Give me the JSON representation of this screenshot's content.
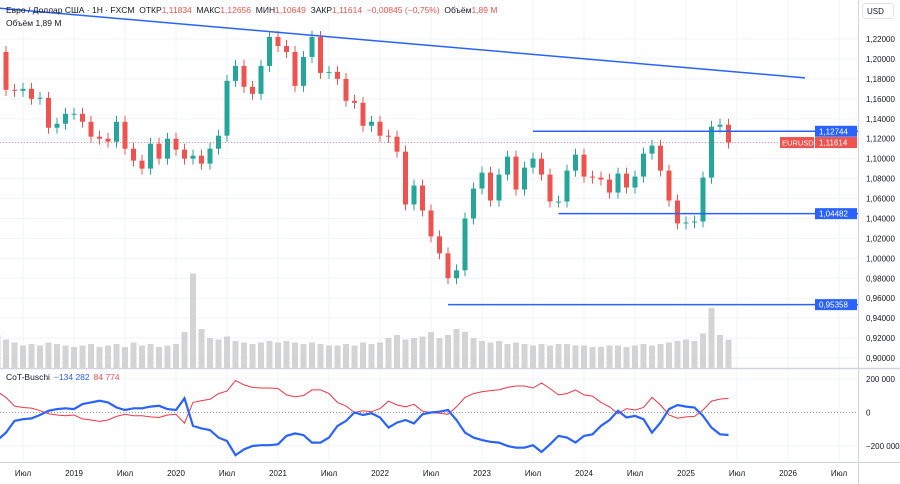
{
  "legend": {
    "symbol": "Евро / Доллар США · 1Н · FXCM",
    "open_label": "ОТКР",
    "open": "1,11834",
    "high_label": "МАКС",
    "high": "1,12656",
    "low_label": "МИН",
    "low": "1,10649",
    "close_label": "ЗАКР",
    "close": "1,11614",
    "change": "−0,00845 (−0,75%)",
    "volume_label": "Объём",
    "volume": "1,89 M",
    "volume_row": "Объём  1,89 M"
  },
  "currency": "USD",
  "cot_legend": {
    "name": "CoT-Buschi",
    "blue_value": "−134 282",
    "red_value": "84 774"
  },
  "colors": {
    "up": "#26a69a",
    "down": "#ef5350",
    "line": "#2962ff",
    "volume": "#c9c9c9",
    "cot_blue": "#2962ff",
    "cot_red": "#f23645",
    "grid": "#f0f3fa"
  },
  "chart_data": {
    "type": "candlestick",
    "symbol": "EURUSD",
    "months": [
      "2018-04",
      "2018-05",
      "2018-06",
      "2018-07",
      "2018-08",
      "2018-09",
      "2018-10",
      "2018-11",
      "2018-12",
      "2019-01",
      "2019-02",
      "2019-03",
      "2019-04",
      "2019-05",
      "2019-06",
      "2019-07",
      "2019-08",
      "2019-09",
      "2019-10",
      "2019-11",
      "2019-12",
      "2020-01",
      "2020-02",
      "2020-03",
      "2020-04",
      "2020-05",
      "2020-06",
      "2020-07",
      "2020-08",
      "2020-09",
      "2020-10",
      "2020-11",
      "2020-12",
      "2021-01",
      "2021-02",
      "2021-03",
      "2021-04",
      "2021-05",
      "2021-06",
      "2021-07",
      "2021-08",
      "2021-09",
      "2021-10",
      "2021-11",
      "2021-12",
      "2022-01",
      "2022-02",
      "2022-03",
      "2022-04",
      "2022-05",
      "2022-06",
      "2022-07",
      "2022-08",
      "2022-09",
      "2022-10",
      "2022-11",
      "2022-12",
      "2023-01",
      "2023-02",
      "2023-03",
      "2023-04",
      "2023-05",
      "2023-06",
      "2023-07",
      "2023-08",
      "2023-09",
      "2023-10",
      "2023-11",
      "2023-12",
      "2024-01",
      "2024-02",
      "2024-03",
      "2024-04",
      "2024-05",
      "2024-06",
      "2024-07",
      "2024-08",
      "2024-09",
      "2024-10",
      "2024-11",
      "2024-12",
      "2025-01",
      "2025-02",
      "2025-03",
      "2025-04",
      "2025-05",
      "2025-06"
    ],
    "open_first": 1.232,
    "close": [
      1.207,
      1.169,
      1.168,
      1.17,
      1.16,
      1.161,
      1.131,
      1.135,
      1.145,
      1.145,
      1.137,
      1.122,
      1.12,
      1.117,
      1.137,
      1.11,
      1.098,
      1.09,
      1.115,
      1.1,
      1.12,
      1.109,
      1.1,
      1.103,
      1.095,
      1.11,
      1.123,
      1.178,
      1.193,
      1.172,
      1.165,
      1.193,
      1.222,
      1.213,
      1.207,
      1.173,
      1.202,
      1.222,
      1.186,
      1.187,
      1.18,
      1.158,
      1.156,
      1.133,
      1.137,
      1.123,
      1.122,
      1.107,
      1.054,
      1.073,
      1.048,
      1.022,
      1.005,
      0.98,
      0.988,
      1.04,
      1.07,
      1.086,
      1.058,
      1.084,
      1.102,
      1.069,
      1.091,
      1.1,
      1.084,
      1.057,
      1.057,
      1.088,
      1.104,
      1.082,
      1.081,
      1.079,
      1.066,
      1.085,
      1.071,
      1.082,
      1.105,
      1.113,
      1.088,
      1.058,
      1.035,
      1.036,
      1.037,
      1.081,
      1.132,
      1.134,
      1.11614
    ],
    "volume_m": [
      2.2,
      1.9,
      1.7,
      1.5,
      1.6,
      1.5,
      1.7,
      1.6,
      1.5,
      1.4,
      1.5,
      1.6,
      1.4,
      1.5,
      1.6,
      1.4,
      1.7,
      1.5,
      1.6,
      1.4,
      1.5,
      1.6,
      2.4,
      6.3,
      2.6,
      2.0,
      1.9,
      2.1,
      1.8,
      1.7,
      1.6,
      1.7,
      1.8,
      1.7,
      1.8,
      1.7,
      1.6,
      1.7,
      1.6,
      1.5,
      1.5,
      1.6,
      1.5,
      1.7,
      1.6,
      1.7,
      2.0,
      2.2,
      1.9,
      2.0,
      2.1,
      2.4,
      2.0,
      2.2,
      2.6,
      2.4,
      2.0,
      1.8,
      1.7,
      1.8,
      1.6,
      1.7,
      1.6,
      1.5,
      1.6,
      1.5,
      1.6,
      1.6,
      1.5,
      1.5,
      1.4,
      1.4,
      1.5,
      1.5,
      1.4,
      1.5,
      1.6,
      1.5,
      1.6,
      1.7,
      1.8,
      1.9,
      1.8,
      2.3,
      4.0,
      2.2,
      1.89
    ],
    "y_ticks": [
      "1,22000",
      "1,20000",
      "1,18000",
      "1,16000",
      "1,14000",
      "1,12000",
      "1,10000",
      "1,08000",
      "1,06000",
      "1,04000",
      "1,02000",
      "1,00000",
      "0,98000",
      "0,96000",
      "0,94000",
      "0,92000",
      "0,90000"
    ],
    "y_range": [
      0.9,
      1.22
    ],
    "levels": [
      {
        "price": 1.12744,
        "label": "1,12744",
        "from": "2023-07"
      },
      {
        "price": 1.04482,
        "label": "1,04482",
        "from": "2023-10"
      },
      {
        "price": 0.95358,
        "label": "0,95358",
        "from": "2022-09"
      }
    ],
    "current_price": {
      "price": 1.11614,
      "label": "1,11614",
      "tag": "EURUSD"
    },
    "trendline": {
      "from": {
        "month": "2018-04",
        "price": 1.251
      },
      "to": {
        "month": "2026-03",
        "price": 1.181
      }
    },
    "x_ticks": [
      {
        "month": "2018-07",
        "label": "Июл"
      },
      {
        "month": "2019-01",
        "label": "2019"
      },
      {
        "month": "2019-07",
        "label": "Июл"
      },
      {
        "month": "2020-01",
        "label": "2020"
      },
      {
        "month": "2020-07",
        "label": "Июл"
      },
      {
        "month": "2021-01",
        "label": "2021"
      },
      {
        "month": "2021-07",
        "label": "Июл"
      },
      {
        "month": "2022-01",
        "label": "2022"
      },
      {
        "month": "2022-07",
        "label": "Июл"
      },
      {
        "month": "2023-01",
        "label": "2023"
      },
      {
        "month": "2023-07",
        "label": "Июл"
      },
      {
        "month": "2024-01",
        "label": "2024"
      },
      {
        "month": "2024-07",
        "label": "Июл"
      },
      {
        "month": "2025-01",
        "label": "2025"
      },
      {
        "month": "2025-07",
        "label": "Июл"
      },
      {
        "month": "2026-01",
        "label": "2026"
      },
      {
        "month": "2026-07",
        "label": "Июл"
      }
    ],
    "cot": {
      "y_ticks": [
        {
          "value": 200000,
          "label": "200 000"
        },
        {
          "value": 0,
          "label": "0"
        },
        {
          "value": -200000,
          "label": "−200 000"
        }
      ],
      "blue": [
        -165000,
        -120000,
        -50000,
        -40000,
        -35000,
        -15000,
        10000,
        20000,
        25000,
        20000,
        50000,
        60000,
        70000,
        60000,
        30000,
        15000,
        25000,
        25000,
        35000,
        40000,
        20000,
        15000,
        85000,
        -80000,
        -95000,
        -105000,
        -150000,
        -170000,
        -255000,
        -220000,
        -200000,
        -195000,
        -195000,
        -190000,
        -140000,
        -125000,
        -135000,
        -180000,
        -180000,
        -150000,
        -80000,
        -50000,
        0,
        -15000,
        -5000,
        -30000,
        -90000,
        -60000,
        -45000,
        -65000,
        -10000,
        0,
        5000,
        15000,
        -45000,
        -120000,
        -150000,
        -165000,
        -175000,
        -180000,
        -200000,
        -210000,
        -210000,
        -195000,
        -235000,
        -190000,
        -140000,
        -150000,
        -180000,
        -140000,
        -130000,
        -80000,
        -45000,
        10000,
        -30000,
        -20000,
        -40000,
        -120000,
        -60000,
        20000,
        45000,
        35000,
        30000,
        -20000,
        -90000,
        -130000,
        -134282
      ],
      "red": [
        124000,
        90000,
        38000,
        30000,
        26000,
        11000,
        -8000,
        -15000,
        -19000,
        -15000,
        -38000,
        -45000,
        -53000,
        -45000,
        -23000,
        -11000,
        -19000,
        -19000,
        -26000,
        -30000,
        -15000,
        -11000,
        -64000,
        60000,
        71000,
        79000,
        113000,
        128000,
        191000,
        165000,
        150000,
        146000,
        146000,
        143000,
        105000,
        94000,
        101000,
        135000,
        135000,
        113000,
        60000,
        38000,
        0,
        11000,
        4000,
        23000,
        68000,
        45000,
        34000,
        49000,
        8000,
        0,
        -4000,
        -11000,
        34000,
        90000,
        113000,
        124000,
        131000,
        135000,
        150000,
        158000,
        158000,
        146000,
        176000,
        143000,
        105000,
        113000,
        135000,
        105000,
        98000,
        60000,
        34000,
        -8000,
        23000,
        15000,
        30000,
        90000,
        45000,
        -15000,
        -34000,
        -26000,
        -23000,
        15000,
        68000,
        80000,
        84774
      ]
    }
  }
}
